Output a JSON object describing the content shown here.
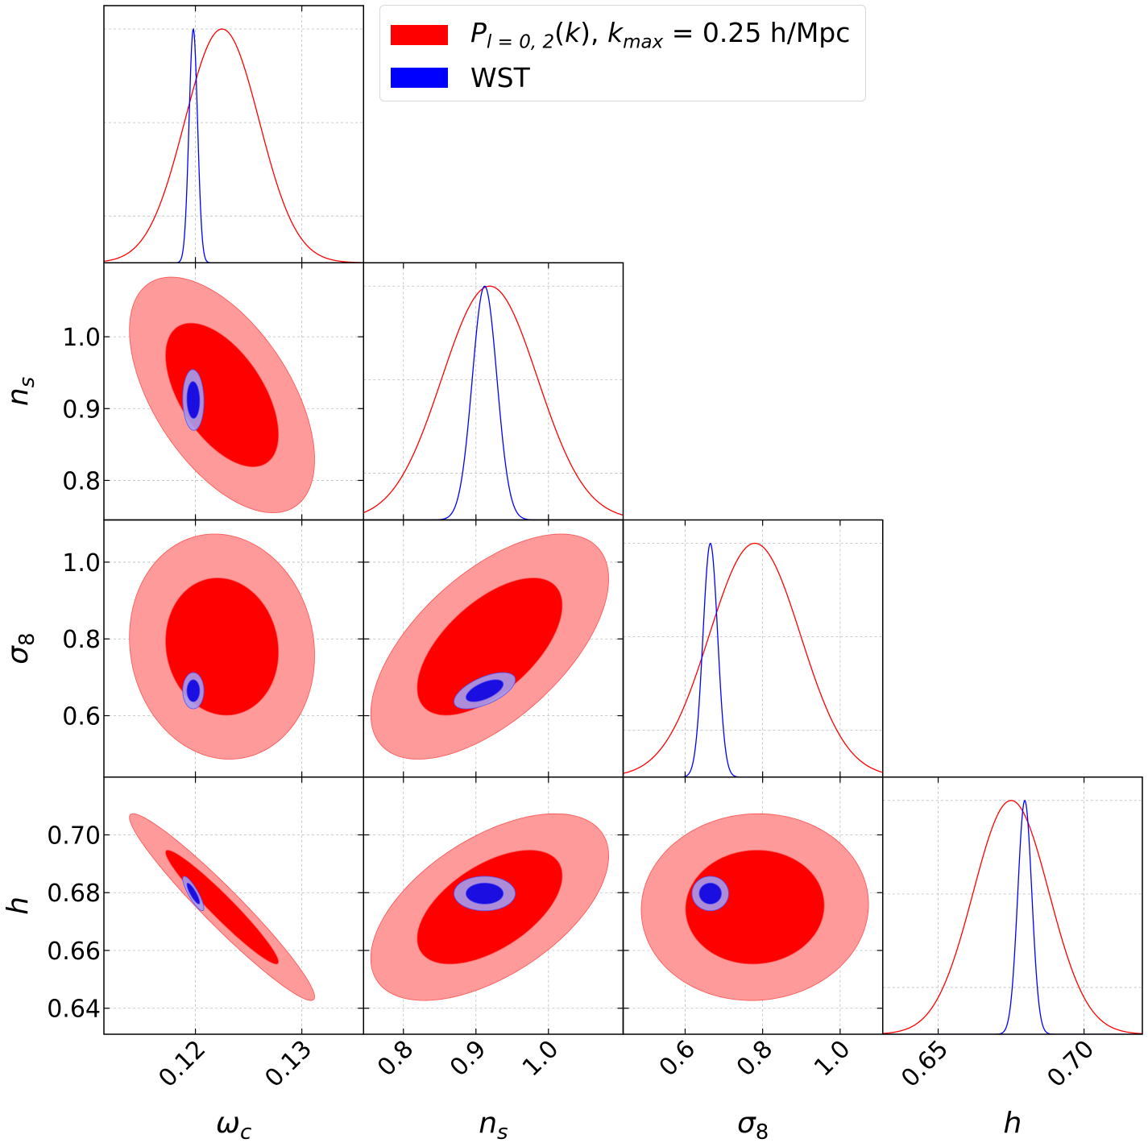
{
  "chart_data": {
    "type": "corner",
    "grid": true,
    "legend_placement": "top-right",
    "parameters": [
      {
        "symbol": "ω",
        "sub": "c",
        "range": [
          0.1114,
          0.1358
        ],
        "ticks": [
          0.12,
          0.13
        ],
        "tick_labels": [
          "0.12",
          "0.13"
        ]
      },
      {
        "symbol": "n",
        "sub": "s",
        "range": [
          0.745,
          1.103
        ],
        "ticks": [
          0.8,
          0.9,
          1.0
        ],
        "tick_labels": [
          "0.8",
          "0.9",
          "1.0"
        ]
      },
      {
        "symbol": "σ",
        "sub": "8",
        "range": [
          0.44,
          1.11
        ],
        "ticks": [
          0.6,
          0.8,
          1.0
        ],
        "tick_labels": [
          "0.6",
          "0.8",
          "1.0"
        ]
      },
      {
        "symbol": "h",
        "sub": "",
        "range": [
          0.631,
          0.72
        ],
        "ticks": [
          0.64,
          0.66,
          0.68,
          0.7
        ],
        "tick_labels": [
          "0.64",
          "0.66",
          "0.68",
          "0.70"
        ],
        "x_ticks": [
          0.65,
          0.7
        ],
        "x_tick_labels": [
          "0.65",
          "0.70"
        ]
      }
    ],
    "series": [
      {
        "name": "P_{l = 0, 2}(k), k_{max} = 0.25 h/Mpc",
        "color": "#ff0000",
        "fill_inner": "#ff0000",
        "fill_outer": "#ff9a9a",
        "means": [
          0.1225,
          0.919,
          0.78,
          0.675
        ],
        "sigmas": [
          0.0035,
          0.066,
          0.118,
          0.013
        ],
        "correlations": {
          "0-1": -0.55,
          "0-2": -0.08,
          "0-3": -0.96,
          "1-2": 0.6,
          "1-3": 0.55,
          "2-3": 0.03
        }
      },
      {
        "name": "WST",
        "color": "#0000ff",
        "fill_inner": "#1a0ee0",
        "fill_outer": "#a49cf0",
        "means": [
          0.1198,
          0.912,
          0.665,
          0.6797
        ],
        "sigmas": [
          0.0004,
          0.017,
          0.019,
          0.0024
        ],
        "correlations": {
          "0-1": -0.05,
          "0-2": 0.0,
          "0-3": -0.85,
          "1-2": 0.6,
          "1-3": 0.0,
          "2-3": 0.0
        }
      }
    ],
    "contour_levels": [
      "68%",
      "95%"
    ],
    "marginal_ylim": [
      0,
      1.1
    ],
    "marginal_gridlines": [
      0.2,
      0.6,
      1.0
    ]
  }
}
